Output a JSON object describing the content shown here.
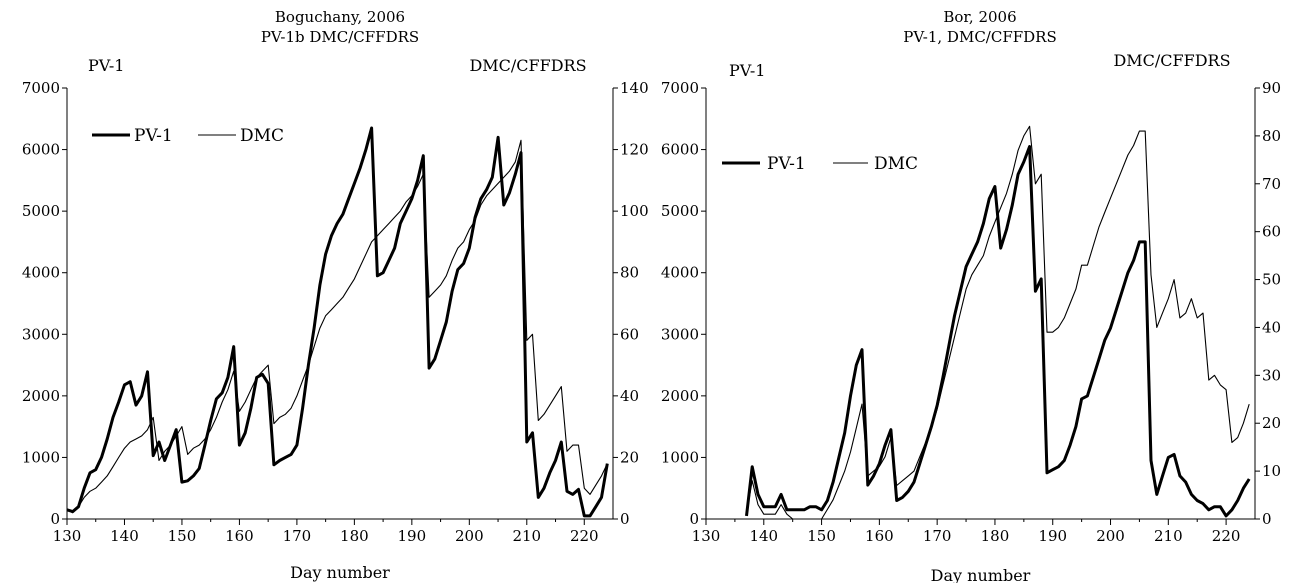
{
  "chart_data": [
    {
      "type": "line",
      "title": "Boguchany, 2006",
      "subtitle": "PV-1b DMC/CFFDRS",
      "xlabel": "Day number",
      "ylabel_left": "PV-1",
      "ylabel_right": "DMC/CFFDRS",
      "xlim": [
        130,
        225
      ],
      "ylim_left": [
        0,
        7000
      ],
      "ylim_right": [
        0,
        140
      ],
      "x_ticks": [
        130,
        140,
        150,
        160,
        170,
        180,
        190,
        200,
        210,
        220
      ],
      "y_ticks_left": [
        0,
        1000,
        2000,
        3000,
        4000,
        5000,
        6000,
        7000
      ],
      "y_ticks_right": [
        0,
        20,
        40,
        60,
        80,
        100,
        120,
        140
      ],
      "legend_position": "top-left",
      "grid": false,
      "series": [
        {
          "name": "PV-1",
          "axis": "left",
          "style": "thick",
          "x": [
            130,
            131,
            132,
            133,
            134,
            135,
            136,
            137,
            138,
            139,
            140,
            141,
            142,
            143,
            144,
            145,
            146,
            147,
            148,
            149,
            150,
            151,
            152,
            153,
            154,
            155,
            156,
            157,
            158,
            159,
            160,
            161,
            162,
            163,
            164,
            165,
            166,
            167,
            168,
            169,
            170,
            171,
            172,
            173,
            174,
            175,
            176,
            177,
            178,
            179,
            180,
            181,
            182,
            183,
            184,
            185,
            186,
            187,
            188,
            189,
            190,
            191,
            192,
            193,
            194,
            195,
            196,
            197,
            198,
            199,
            200,
            201,
            202,
            203,
            204,
            205,
            206,
            207,
            208,
            209,
            210,
            211,
            212,
            213,
            214,
            215,
            216,
            217,
            218,
            219,
            220,
            221,
            222,
            223,
            224
          ],
          "values": [
            150,
            120,
            200,
            500,
            750,
            800,
            1000,
            1300,
            1650,
            1900,
            2180,
            2230,
            1850,
            2000,
            2390,
            1030,
            1250,
            950,
            1200,
            1450,
            600,
            620,
            700,
            820,
            1200,
            1600,
            1950,
            2050,
            2300,
            2800,
            1200,
            1400,
            1800,
            2300,
            2350,
            2200,
            880,
            950,
            1000,
            1050,
            1200,
            1800,
            2500,
            3100,
            3800,
            4300,
            4600,
            4800,
            4950,
            5200,
            5450,
            5700,
            6000,
            6350,
            3950,
            4000,
            4200,
            4400,
            4800,
            5000,
            5200,
            5500,
            5900,
            2450,
            2600,
            2900,
            3200,
            3700,
            4050,
            4150,
            4400,
            4900,
            5200,
            5350,
            5550,
            6200,
            5100,
            5300,
            5600,
            5950,
            1250,
            1400,
            350,
            500,
            750,
            950,
            1250,
            450,
            400,
            480,
            50,
            50,
            200,
            350,
            900
          ]
        },
        {
          "name": "DMC",
          "axis": "right",
          "style": "thin",
          "x": [
            130,
            131,
            132,
            133,
            134,
            135,
            136,
            137,
            138,
            139,
            140,
            141,
            142,
            143,
            144,
            145,
            146,
            147,
            148,
            149,
            150,
            151,
            152,
            153,
            154,
            155,
            156,
            157,
            158,
            159,
            160,
            161,
            162,
            163,
            164,
            165,
            166,
            167,
            168,
            169,
            170,
            171,
            172,
            173,
            174,
            175,
            176,
            177,
            178,
            179,
            180,
            181,
            182,
            183,
            184,
            185,
            186,
            187,
            188,
            189,
            190,
            191,
            192,
            193,
            194,
            195,
            196,
            197,
            198,
            199,
            200,
            201,
            202,
            203,
            204,
            205,
            206,
            207,
            208,
            209,
            210,
            211,
            212,
            213,
            214,
            215,
            216,
            217,
            218,
            219,
            220,
            221,
            222,
            223,
            224
          ],
          "values": [
            3,
            2,
            4,
            7,
            9,
            10,
            12,
            14,
            17,
            20,
            23,
            25,
            26,
            27,
            29,
            33,
            19,
            22,
            24,
            27,
            30,
            21,
            23,
            24,
            26,
            29,
            33,
            38,
            42,
            48,
            35,
            38,
            42,
            46,
            48,
            50,
            31,
            33,
            34,
            36,
            40,
            45,
            50,
            56,
            62,
            66,
            68,
            70,
            72,
            75,
            78,
            82,
            86,
            90,
            92,
            94,
            96,
            98,
            100,
            103,
            105,
            108,
            112,
            72,
            74,
            76,
            79,
            84,
            88,
            90,
            94,
            97,
            102,
            105,
            107,
            109,
            111,
            113,
            116,
            123,
            58,
            60,
            32,
            34,
            37,
            40,
            43,
            22,
            24,
            24,
            10,
            8,
            11,
            14,
            18
          ]
        }
      ]
    },
    {
      "type": "line",
      "title": "Bor, 2006",
      "subtitle": "PV-1, DMC/CFFDRS",
      "xlabel": "Day number",
      "ylabel_left": "PV-1",
      "ylabel_right": "DMC/CFFDRS",
      "xlim": [
        130,
        225
      ],
      "ylim_left": [
        0,
        7000
      ],
      "ylim_right": [
        0,
        90
      ],
      "x_ticks": [
        130,
        140,
        150,
        160,
        170,
        180,
        190,
        200,
        210,
        220
      ],
      "y_ticks_left": [
        0,
        1000,
        2000,
        3000,
        4000,
        5000,
        6000,
        7000
      ],
      "y_ticks_right": [
        0,
        10,
        20,
        30,
        40,
        50,
        60,
        70,
        80,
        90
      ],
      "legend_position": "top-left",
      "grid": false,
      "series": [
        {
          "name": "PV-1",
          "axis": "left",
          "style": "thick",
          "x": [
            137,
            138,
            139,
            140,
            141,
            142,
            143,
            144,
            145,
            146,
            147,
            148,
            149,
            150,
            151,
            152,
            153,
            154,
            155,
            156,
            157,
            158,
            159,
            160,
            161,
            162,
            163,
            164,
            165,
            166,
            167,
            168,
            169,
            170,
            171,
            172,
            173,
            174,
            175,
            176,
            177,
            178,
            179,
            180,
            181,
            182,
            183,
            184,
            185,
            186,
            187,
            188,
            189,
            190,
            191,
            192,
            193,
            194,
            195,
            196,
            197,
            198,
            199,
            200,
            201,
            202,
            203,
            204,
            205,
            206,
            207,
            208,
            209,
            210,
            211,
            212,
            213,
            214,
            215,
            216,
            217,
            218,
            219,
            220,
            221,
            222,
            223,
            224
          ],
          "values": [
            50,
            850,
            400,
            200,
            200,
            200,
            400,
            150,
            150,
            150,
            150,
            200,
            200,
            150,
            300,
            600,
            1000,
            1400,
            2000,
            2500,
            2750,
            550,
            700,
            900,
            1200,
            1450,
            300,
            350,
            450,
            600,
            900,
            1200,
            1500,
            1850,
            2300,
            2800,
            3300,
            3700,
            4100,
            4300,
            4500,
            4800,
            5200,
            5400,
            4400,
            4700,
            5100,
            5600,
            5800,
            6050,
            3700,
            3900,
            750,
            800,
            850,
            950,
            1200,
            1500,
            1950,
            2000,
            2300,
            2600,
            2900,
            3100,
            3400,
            3700,
            4000,
            4200,
            4500,
            4500,
            950,
            400,
            700,
            1000,
            1050,
            700,
            600,
            400,
            300,
            250,
            150,
            200,
            200,
            50,
            150,
            300,
            500,
            650
          ]
        },
        {
          "name": "DMC",
          "axis": "right",
          "style": "thin",
          "x": [
            137,
            138,
            139,
            140,
            141,
            142,
            143,
            144,
            145,
            146,
            147,
            148,
            149,
            150,
            151,
            152,
            153,
            154,
            155,
            156,
            157,
            158,
            159,
            160,
            161,
            162,
            163,
            164,
            165,
            166,
            167,
            168,
            169,
            170,
            171,
            172,
            173,
            174,
            175,
            176,
            177,
            178,
            179,
            180,
            181,
            182,
            183,
            184,
            185,
            186,
            187,
            188,
            189,
            190,
            191,
            192,
            193,
            194,
            195,
            196,
            197,
            198,
            199,
            200,
            201,
            202,
            203,
            204,
            205,
            206,
            207,
            208,
            209,
            210,
            211,
            212,
            213,
            214,
            215,
            216,
            217,
            218,
            219,
            220,
            221,
            222,
            223,
            224
          ],
          "values": [
            1,
            8,
            3,
            1,
            1,
            1,
            3,
            1,
            0,
            0,
            0,
            0,
            0,
            0,
            2,
            4,
            7,
            10,
            14,
            19,
            24,
            9,
            10,
            11,
            13,
            17,
            7,
            8,
            9,
            10,
            13,
            16,
            19,
            23,
            28,
            33,
            38,
            43,
            48,
            51,
            53,
            55,
            59,
            62,
            65,
            68,
            72,
            77,
            80,
            82,
            70,
            72,
            39,
            39,
            40,
            42,
            45,
            48,
            53,
            53,
            57,
            61,
            64,
            67,
            70,
            73,
            76,
            78,
            81,
            81,
            51,
            40,
            43,
            46,
            50,
            42,
            43,
            46,
            42,
            43,
            29,
            30,
            28,
            27,
            16,
            17,
            20,
            24
          ]
        }
      ]
    }
  ]
}
